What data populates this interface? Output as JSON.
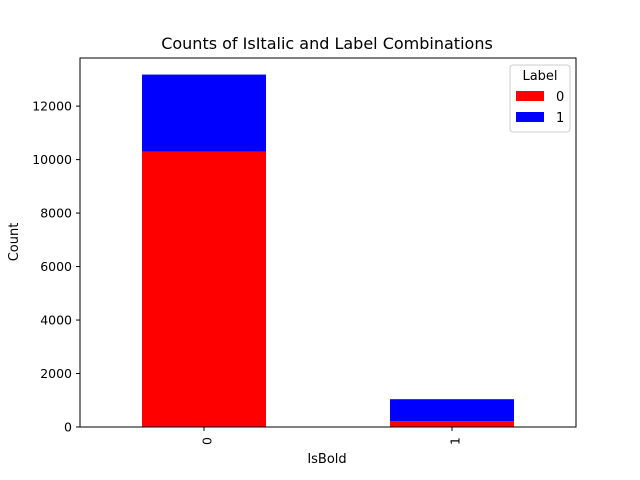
{
  "chart_data": {
    "type": "bar",
    "stacked": true,
    "title": "Counts of IsItalic and Label Combinations",
    "xlabel": "IsBold",
    "ylabel": "Count",
    "categories": [
      "0",
      "1"
    ],
    "ylim": [
      0,
      13800
    ],
    "yticks": [
      0,
      2000,
      4000,
      6000,
      8000,
      10000,
      12000
    ],
    "grid": false,
    "legend": {
      "title": "Label",
      "placement": "top-right"
    },
    "series": [
      {
        "name": "0",
        "color": "#ff0000",
        "values": [
          10300,
          220
        ]
      },
      {
        "name": "1",
        "color": "#0000ff",
        "values": [
          2880,
          820
        ]
      }
    ]
  }
}
